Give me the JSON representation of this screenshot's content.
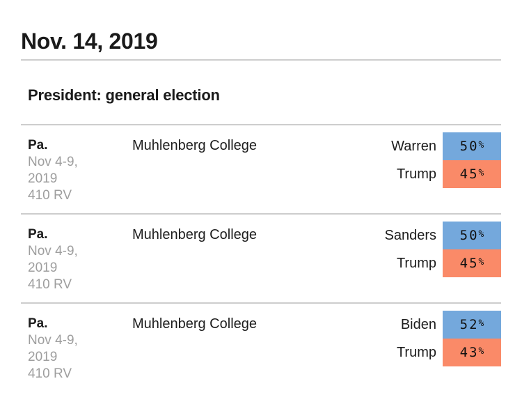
{
  "header": {
    "date_title": "Nov. 14, 2019",
    "section_title": "President: general election"
  },
  "labels": {
    "percent_sign": "%"
  },
  "colors": {
    "dem": "#74a8dc",
    "rep": "#fa8a68"
  },
  "polls": [
    {
      "state": "Pa.",
      "date_line1": "Nov 4-9,",
      "date_line2": "2019",
      "sample": "410 RV",
      "pollster": "Muhlenberg College",
      "results": [
        {
          "candidate": "Warren",
          "value": "50",
          "party": "dem"
        },
        {
          "candidate": "Trump",
          "value": "45",
          "party": "rep"
        }
      ]
    },
    {
      "state": "Pa.",
      "date_line1": "Nov 4-9,",
      "date_line2": "2019",
      "sample": "410 RV",
      "pollster": "Muhlenberg College",
      "results": [
        {
          "candidate": "Sanders",
          "value": "50",
          "party": "dem"
        },
        {
          "candidate": "Trump",
          "value": "45",
          "party": "rep"
        }
      ]
    },
    {
      "state": "Pa.",
      "date_line1": "Nov 4-9,",
      "date_line2": "2019",
      "sample": "410 RV",
      "pollster": "Muhlenberg College",
      "results": [
        {
          "candidate": "Biden",
          "value": "52",
          "party": "dem"
        },
        {
          "candidate": "Trump",
          "value": "43",
          "party": "rep"
        }
      ]
    }
  ]
}
